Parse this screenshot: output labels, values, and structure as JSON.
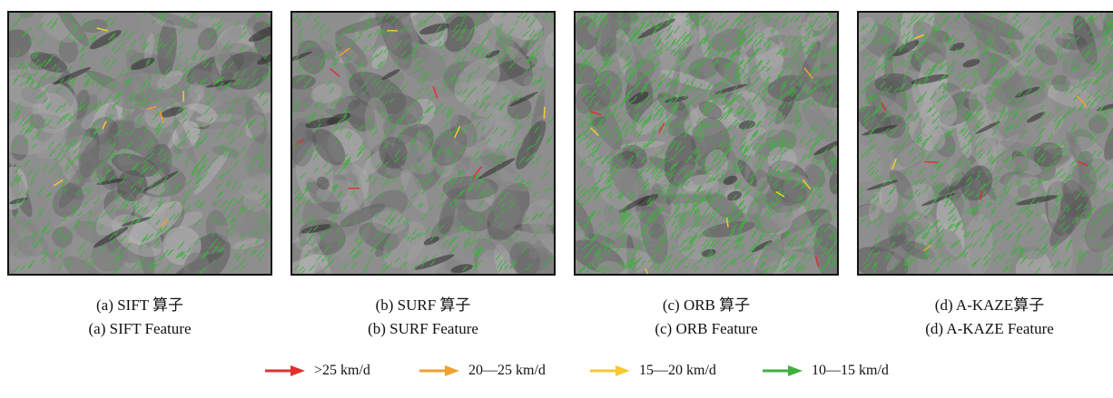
{
  "panels": [
    {
      "caption_cn": "(a) SIFT 算子",
      "caption_en": "(a) SIFT Feature",
      "density": 0.35,
      "seed": 11
    },
    {
      "caption_cn": "(b) SURF 算子",
      "caption_en": "(b) SURF Feature",
      "density": 0.3,
      "seed": 23
    },
    {
      "caption_cn": "(c) ORB 算子",
      "caption_en": "(c) ORB Feature",
      "density": 0.85,
      "seed": 37
    },
    {
      "caption_cn": "(d) A-KAZE算子",
      "caption_en": "(d) A-KAZE Feature",
      "density": 0.55,
      "seed": 53
    }
  ],
  "legend": [
    {
      "label": ">25 km/d",
      "color": "#e03030"
    },
    {
      "label": "20—25 km/d",
      "color": "#f0a030"
    },
    {
      "label": "15—20 km/d",
      "color": "#f8c830"
    },
    {
      "label": "10—15 km/d",
      "color": "#3fb03f"
    }
  ]
}
